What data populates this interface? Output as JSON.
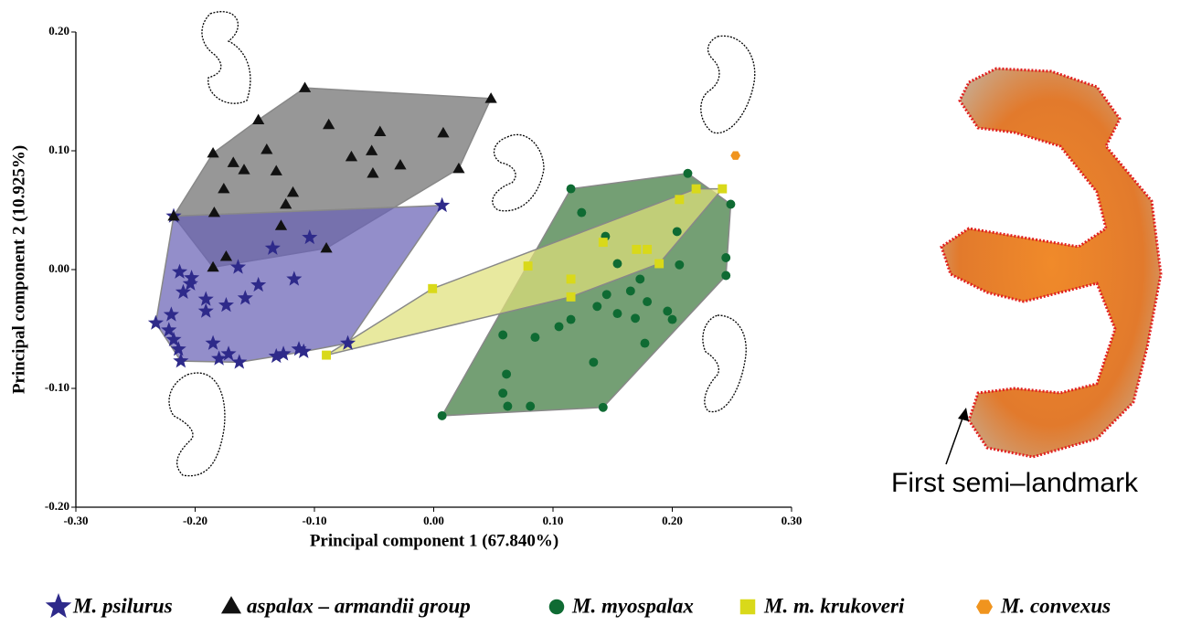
{
  "chart_data": {
    "type": "scatter",
    "xlabel": "Principal component 1 (67.840%)",
    "ylabel": "Principal component 2 (10.925%)",
    "annotation": "First semi–landmark",
    "xlim": [
      -0.3,
      0.3
    ],
    "ylim": [
      -0.2,
      0.2
    ],
    "xticks": [
      {
        "value": -0.3,
        "label": "-0.30"
      },
      {
        "value": -0.2,
        "label": "-0.20"
      },
      {
        "value": -0.1,
        "label": "-0.10"
      },
      {
        "value": 0,
        "label": "0.00"
      },
      {
        "value": 0.1,
        "label": "0.10"
      },
      {
        "value": 0.2,
        "label": "0.20"
      },
      {
        "value": 0.3,
        "label": "0.30"
      }
    ],
    "yticks": [
      {
        "value": -0.2,
        "label": "-0.20"
      },
      {
        "value": -0.1,
        "label": "-0.10"
      },
      {
        "value": 0,
        "label": "0.00"
      },
      {
        "value": 0.1,
        "label": "0.10"
      },
      {
        "value": 0.2,
        "label": "0.20"
      }
    ],
    "hull": true,
    "series": [
      {
        "name": "M. psilurus",
        "color": "#2e2a8a",
        "hull_color": "#6a63b5",
        "marker": "star",
        "x": [
          -0.233,
          -0.22,
          -0.222,
          -0.218,
          -0.214,
          -0.212,
          -0.213,
          -0.21,
          -0.204,
          -0.203,
          -0.191,
          -0.191,
          -0.174,
          -0.164,
          -0.158,
          -0.147,
          -0.117,
          -0.185,
          -0.18,
          -0.172,
          -0.163,
          -0.132,
          -0.126,
          -0.113,
          -0.109,
          -0.072,
          -0.135,
          -0.104,
          0.007,
          -0.218
        ],
        "values": [
          -0.045,
          -0.038,
          -0.051,
          -0.059,
          -0.067,
          -0.077,
          -0.002,
          -0.019,
          -0.012,
          -0.007,
          -0.025,
          -0.035,
          -0.03,
          0.002,
          -0.024,
          -0.013,
          -0.008,
          -0.062,
          -0.075,
          -0.071,
          -0.078,
          -0.073,
          -0.071,
          -0.067,
          -0.069,
          -0.062,
          0.018,
          0.027,
          0.054,
          0.045
        ]
      },
      {
        "name": "aspalax – armandii group",
        "color": "#111111",
        "hull_color": "#6f6f6f",
        "marker": "triangle",
        "x": [
          -0.108,
          0.048,
          0.008,
          0.021,
          -0.147,
          -0.185,
          -0.168,
          -0.159,
          -0.176,
          -0.14,
          -0.132,
          -0.118,
          -0.124,
          -0.184,
          -0.088,
          -0.069,
          -0.052,
          -0.051,
          -0.045,
          -0.028,
          -0.174,
          -0.185,
          -0.09,
          -0.128,
          -0.218
        ],
        "values": [
          0.153,
          0.144,
          0.115,
          0.085,
          0.126,
          0.098,
          0.09,
          0.084,
          0.068,
          0.101,
          0.083,
          0.065,
          0.055,
          0.048,
          0.122,
          0.095,
          0.1,
          0.081,
          0.116,
          0.088,
          0.011,
          0.002,
          0.018,
          0.037,
          0.045
        ]
      },
      {
        "name": "M. myospalax",
        "color": "#0f6b33",
        "hull_color": "#3f7a3f",
        "marker": "circle",
        "x": [
          0.213,
          0.249,
          0.245,
          0.245,
          0.206,
          0.204,
          0.115,
          0.124,
          0.144,
          0.154,
          0.165,
          0.173,
          0.179,
          0.145,
          0.115,
          0.105,
          0.137,
          0.154,
          0.169,
          0.177,
          0.196,
          0.2,
          0.058,
          0.085,
          0.061,
          0.058,
          0.081,
          0.007,
          0.142,
          0.134,
          0.062
        ],
        "values": [
          0.081,
          0.055,
          0.01,
          -0.005,
          0.004,
          0.032,
          0.068,
          0.048,
          0.028,
          0.005,
          -0.018,
          -0.008,
          -0.027,
          -0.021,
          -0.042,
          -0.048,
          -0.031,
          -0.037,
          -0.041,
          -0.062,
          -0.035,
          -0.042,
          -0.055,
          -0.057,
          -0.088,
          -0.104,
          -0.115,
          -0.123,
          -0.116,
          -0.078,
          -0.115
        ]
      },
      {
        "name": "M. m. krukoveri",
        "color": "#d9d91a",
        "hull_color": "#dfe07a",
        "marker": "square",
        "x": [
          -0.09,
          -0.001,
          0.079,
          0.115,
          0.115,
          0.17,
          0.179,
          0.189,
          0.22,
          0.206,
          0.242,
          0.142
        ],
        "values": [
          -0.072,
          -0.016,
          0.003,
          -0.008,
          -0.023,
          0.017,
          0.017,
          0.005,
          0.068,
          0.059,
          0.068,
          0.023
        ]
      },
      {
        "name": "M. convexus",
        "color": "#f0941e",
        "marker": "hexagon",
        "x": [
          0.253
        ],
        "values": [
          0.096
        ]
      }
    ]
  }
}
